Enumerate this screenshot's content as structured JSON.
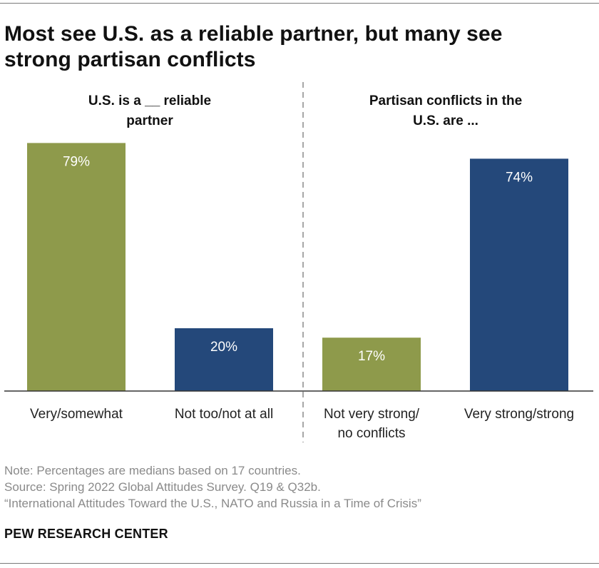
{
  "title": "Most see U.S. as a reliable partner, but many see strong partisan conflicts",
  "colors": {
    "green": "#8e9a4b",
    "blue": "#24487a",
    "divider": "#8a8a8a",
    "baseline": "#333333"
  },
  "chart_data": {
    "type": "bar",
    "value_suffix": "%",
    "ylim": [
      0,
      100
    ],
    "grid": false,
    "panels": [
      {
        "heading": [
          "U.S. is a __ reliable",
          "partner"
        ],
        "bars": [
          {
            "category": [
              "Very/somewhat"
            ],
            "value": 79,
            "color": "green"
          },
          {
            "category": [
              "Not too/not at all"
            ],
            "value": 20,
            "color": "blue"
          }
        ]
      },
      {
        "heading": [
          "Partisan conflicts in the",
          "U.S. are ..."
        ],
        "bars": [
          {
            "category": [
              "Not very strong/",
              "no conflicts"
            ],
            "value": 17,
            "color": "green"
          },
          {
            "category": [
              "Very strong/strong"
            ],
            "value": 74,
            "color": "blue"
          }
        ]
      }
    ]
  },
  "footer": {
    "note": "Note: Percentages are medians based on 17 countries.",
    "source": "Source: Spring 2022 Global Attitudes Survey. Q19 & Q32b.",
    "report": "“International Attitudes Toward the U.S., NATO and Russia in a Time of Crisis”",
    "brand": "PEW RESEARCH CENTER"
  }
}
